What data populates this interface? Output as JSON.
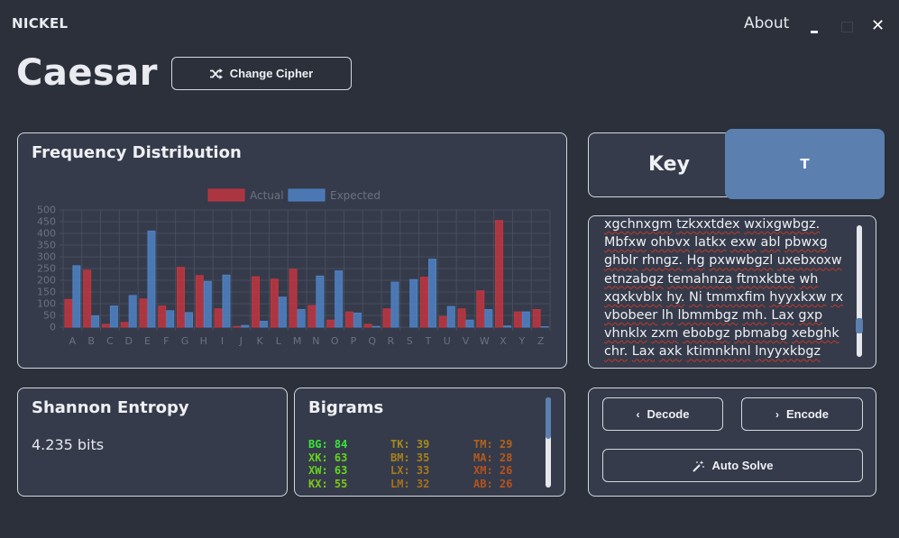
{
  "app": {
    "name": "NICKEL",
    "about_label": "About"
  },
  "window": {
    "minimize_label": "_",
    "close_label": "✕"
  },
  "header": {
    "cipher_name": "Caesar",
    "change_cipher_label": "Change Cipher"
  },
  "frequency": {
    "title": "Frequency Distribution",
    "chart_data": {
      "type": "bar",
      "title": "Frequency Distribution",
      "categories": [
        "A",
        "B",
        "C",
        "D",
        "E",
        "F",
        "G",
        "H",
        "I",
        "J",
        "K",
        "L",
        "M",
        "N",
        "O",
        "P",
        "Q",
        "R",
        "S",
        "T",
        "U",
        "V",
        "W",
        "X",
        "Y",
        "Z"
      ],
      "series": [
        {
          "name": "Actual",
          "color": "#c0363f",
          "values": [
            118,
            243,
            12,
            20,
            120,
            90,
            255,
            220,
            78,
            3,
            215,
            205,
            247,
            92,
            30,
            65,
            12,
            78,
            0,
            213,
            45,
            78,
            155,
            455,
            65,
            75
          ]
        },
        {
          "name": "Expected",
          "color": "#4f82c4",
          "values": [
            262,
            48,
            90,
            135,
            410,
            70,
            62,
            195,
            222,
            7,
            25,
            128,
            75,
            218,
            240,
            60,
            3,
            192,
            203,
            290,
            88,
            30,
            75,
            5,
            65,
            2
          ]
        }
      ],
      "ylim": [
        0,
        500
      ],
      "yticks": [
        0,
        50,
        100,
        150,
        200,
        250,
        300,
        350,
        400,
        450,
        500
      ],
      "legend_position": "top-center",
      "grid": true
    }
  },
  "key": {
    "label": "Key",
    "value": "T"
  },
  "text": {
    "content": "xgchnxgm tzkxxtdex wxixgwbgz. Mbfxw ohbvx latkx exw abl pbwxg ghblr rhngz. Hg pxwwbgzl uxebxoxw etnzabgz temahnza ftmxkbte wh xqxkvblx hy. Ni tmmxfim hyyxkxw rx vbobeer lh lbmmbgz mh. Lax gxp vhnklx zxm ebobgz pbmabg xebghk chr. Lax axk ktimnkhnl lnyyxkbgz"
  },
  "entropy": {
    "title": "Shannon Entropy",
    "value": "4.235 bits"
  },
  "bigrams": {
    "title": "Bigrams",
    "items": [
      {
        "pair": "BG",
        "count": "84",
        "color": "#39e639"
      },
      {
        "pair": "XK",
        "count": "63",
        "color": "#66d41f"
      },
      {
        "pair": "XW",
        "count": "63",
        "color": "#66d41f"
      },
      {
        "pair": "KX",
        "count": "55",
        "color": "#7fc71a"
      },
      {
        "pair": "TK",
        "count": "39",
        "color": "#a58b1c"
      },
      {
        "pair": "BM",
        "count": "35",
        "color": "#a8801c"
      },
      {
        "pair": "LX",
        "count": "33",
        "color": "#a8781c"
      },
      {
        "pair": "LM",
        "count": "32",
        "color": "#a8701c"
      },
      {
        "pair": "TM",
        "count": "29",
        "color": "#b3621c"
      },
      {
        "pair": "MA",
        "count": "28",
        "color": "#b65a1c"
      },
      {
        "pair": "XM",
        "count": "26",
        "color": "#b8521c"
      },
      {
        "pair": "AB",
        "count": "26",
        "color": "#b8521c"
      }
    ]
  },
  "actions": {
    "decode_label": "Decode",
    "encode_label": "Encode",
    "autosolve_label": "Auto Solve"
  }
}
